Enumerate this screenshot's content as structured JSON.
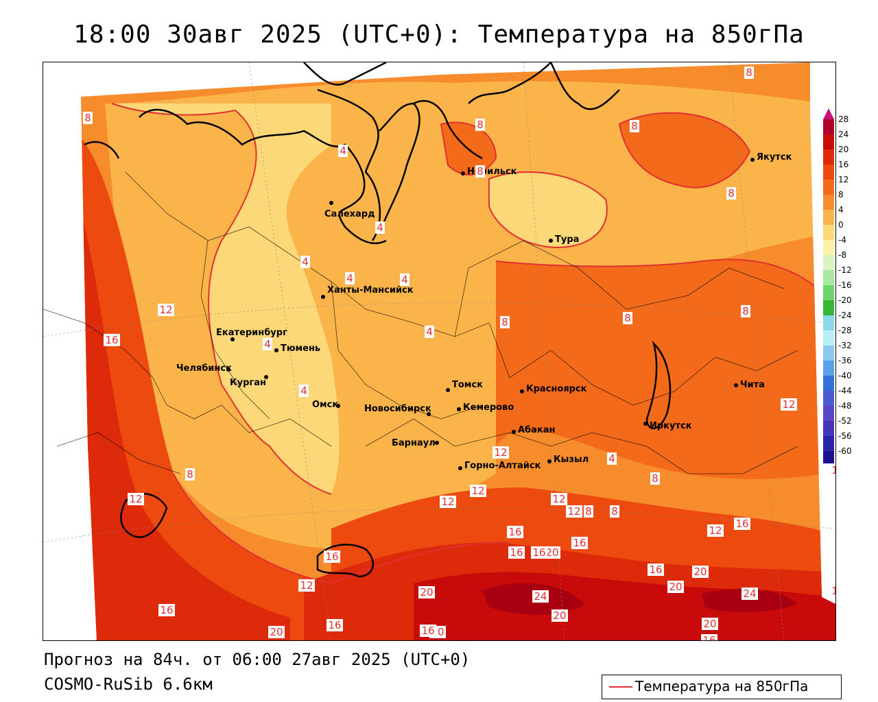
{
  "title": "18:00 30авг 2025 (UTC+0): Температура на 850гПа",
  "footer": {
    "forecast": "Прогноз на 84ч. от 06:00 27авг 2025 (UTC+0)",
    "model": "COSMO-RuSib 6.6км"
  },
  "legend": {
    "label": "Температура на 850гПа",
    "line_color": "#e03030"
  },
  "colorbar": {
    "levels": [
      "28",
      "24",
      "20",
      "16",
      "12",
      "8",
      "4",
      "0",
      "-4",
      "-8",
      "-12",
      "-16",
      "-20",
      "-24",
      "-28",
      "-32",
      "-36",
      "-40",
      "-44",
      "-48",
      "-52",
      "-56",
      "-60"
    ],
    "colors": [
      "#b0002a",
      "#c80a0a",
      "#dd2a0a",
      "#ec4a0e",
      "#f26a1a",
      "#f78c2c",
      "#fab44a",
      "#fcd878",
      "#fef2a8",
      "#d8f4c0",
      "#a8e8a0",
      "#6cd46c",
      "#36b836",
      "#8ad8e8",
      "#b8eef8",
      "#8cc8f0",
      "#5aa0e8",
      "#3070d8",
      "#4a5ad0",
      "#5a46c8",
      "#4434b8",
      "#2a22a8",
      "#1a1090"
    ]
  },
  "cities": [
    {
      "name": "Салехард"
    },
    {
      "name": "Норильск"
    },
    {
      "name": "Якутск"
    },
    {
      "name": "Тура"
    },
    {
      "name": "Ханты-Мансийск"
    },
    {
      "name": "Екатеринбург"
    },
    {
      "name": "Тюмень"
    },
    {
      "name": "Челябинск"
    },
    {
      "name": "Курган"
    },
    {
      "name": "Омск"
    },
    {
      "name": "Новосибирск"
    },
    {
      "name": "Томск"
    },
    {
      "name": "Кемерово"
    },
    {
      "name": "Красноярск"
    },
    {
      "name": "Барнаул"
    },
    {
      "name": "Абакан"
    },
    {
      "name": "Горно-Алтайск"
    },
    {
      "name": "Кызыл"
    },
    {
      "name": "Иркутск"
    },
    {
      "name": "Чита"
    }
  ],
  "contour_labels": [
    "8",
    "8",
    "8",
    "8",
    "8",
    "4",
    "4",
    "4",
    "4",
    "4",
    "4",
    "4",
    "4",
    "12",
    "16",
    "8",
    "12",
    "8",
    "8",
    "8",
    "8",
    "8",
    "12",
    "12",
    "16",
    "16",
    "20",
    "20",
    "16",
    "16",
    "20",
    "24",
    "24",
    "16",
    "12",
    "16",
    "16",
    "20",
    "20",
    "16",
    "12",
    "16",
    "12",
    "12",
    "12",
    "16",
    "20",
    "20",
    "8",
    "8",
    "4",
    "12",
    "12",
    "20",
    "16",
    "16"
  ]
}
